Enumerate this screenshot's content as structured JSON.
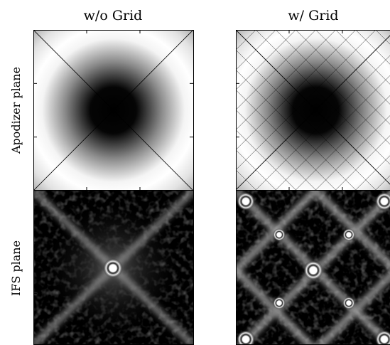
{
  "columns": [
    "w/o Grid",
    "w/ Grid"
  ],
  "rows": [
    "Apodizer plane",
    "IFS plane"
  ]
}
